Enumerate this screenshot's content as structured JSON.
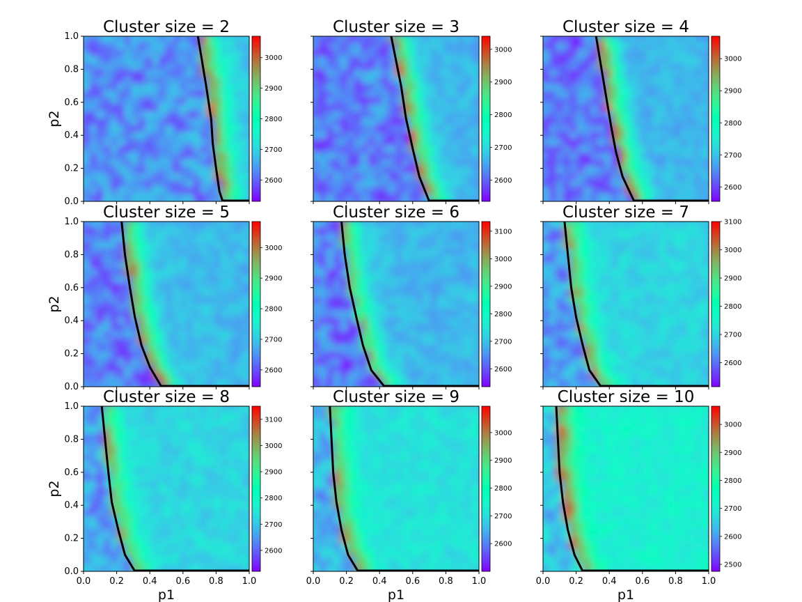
{
  "chart_data": {
    "type": "heatmap",
    "colormap": "rainbow",
    "grid": false,
    "xlabel": "p1",
    "ylabel": "p2",
    "xlim": [
      0.0,
      1.0
    ],
    "ylim": [
      0.0,
      1.0
    ],
    "x_ticks": [
      "0.0",
      "0.2",
      "0.4",
      "0.6",
      "0.8",
      "1.0"
    ],
    "y_ticks": [
      "0.0",
      "0.2",
      "0.4",
      "0.6",
      "0.8",
      "1.0"
    ],
    "boundary_color": "#000000",
    "panels": [
      {
        "title": "Cluster size = 2",
        "colorbar": {
          "min": 2530,
          "max": 3070,
          "ticks": [
            "2600",
            "2700",
            "2800",
            "2900",
            "3000"
          ]
        },
        "boundary": [
          [
            0.69,
            1.0
          ],
          [
            0.71,
            0.88
          ],
          [
            0.74,
            0.7
          ],
          [
            0.77,
            0.5
          ],
          [
            0.78,
            0.35
          ],
          [
            0.8,
            0.2
          ],
          [
            0.82,
            0.06
          ],
          [
            0.84,
            0.0
          ]
        ],
        "ridge_peak": 3010,
        "background_level": 2660
      },
      {
        "title": "Cluster size = 3",
        "colorbar": {
          "min": 2535,
          "max": 3040,
          "ticks": [
            "2600",
            "2700",
            "2800",
            "2900",
            "3000"
          ]
        },
        "boundary": [
          [
            0.47,
            1.0
          ],
          [
            0.5,
            0.85
          ],
          [
            0.53,
            0.7
          ],
          [
            0.56,
            0.5
          ],
          [
            0.6,
            0.32
          ],
          [
            0.64,
            0.15
          ],
          [
            0.7,
            0.0
          ]
        ],
        "ridge_peak": 2980,
        "background_level": 2640
      },
      {
        "title": "Cluster size = 4",
        "colorbar": {
          "min": 2555,
          "max": 3070,
          "ticks": [
            "2600",
            "2700",
            "2800",
            "2900",
            "3000"
          ]
        },
        "boundary": [
          [
            0.32,
            1.0
          ],
          [
            0.35,
            0.82
          ],
          [
            0.38,
            0.64
          ],
          [
            0.41,
            0.46
          ],
          [
            0.44,
            0.3
          ],
          [
            0.48,
            0.15
          ],
          [
            0.55,
            0.0
          ]
        ],
        "ridge_peak": 3000,
        "background_level": 2660
      },
      {
        "title": "Cluster size = 5",
        "colorbar": {
          "min": 2545,
          "max": 3085,
          "ticks": [
            "2600",
            "2700",
            "2800",
            "2900",
            "3000"
          ]
        },
        "boundary": [
          [
            0.23,
            1.0
          ],
          [
            0.25,
            0.8
          ],
          [
            0.28,
            0.6
          ],
          [
            0.31,
            0.42
          ],
          [
            0.35,
            0.25
          ],
          [
            0.4,
            0.12
          ],
          [
            0.47,
            0.0
          ]
        ],
        "ridge_peak": 3020,
        "background_level": 2660
      },
      {
        "title": "Cluster size = 6",
        "colorbar": {
          "min": 2535,
          "max": 3135,
          "ticks": [
            "2600",
            "2700",
            "2800",
            "2900",
            "3000",
            "3100"
          ]
        },
        "boundary": [
          [
            0.17,
            1.0
          ],
          [
            0.19,
            0.8
          ],
          [
            0.22,
            0.6
          ],
          [
            0.26,
            0.42
          ],
          [
            0.3,
            0.25
          ],
          [
            0.35,
            0.1
          ],
          [
            0.43,
            0.0
          ]
        ],
        "ridge_peak": 2990,
        "background_level": 2660
      },
      {
        "title": "Cluster size = 7",
        "colorbar": {
          "min": 2515,
          "max": 3100,
          "ticks": [
            "2600",
            "2700",
            "2800",
            "2900",
            "3000",
            "3100"
          ]
        },
        "boundary": [
          [
            0.13,
            1.0
          ],
          [
            0.15,
            0.8
          ],
          [
            0.17,
            0.6
          ],
          [
            0.2,
            0.42
          ],
          [
            0.24,
            0.25
          ],
          [
            0.28,
            0.1
          ],
          [
            0.35,
            0.0
          ]
        ],
        "ridge_peak": 2980,
        "background_level": 2670
      },
      {
        "title": "Cluster size = 8",
        "colorbar": {
          "min": 2520,
          "max": 3150,
          "ticks": [
            "2600",
            "2700",
            "2800",
            "2900",
            "3000",
            "3100"
          ]
        },
        "boundary": [
          [
            0.11,
            1.0
          ],
          [
            0.13,
            0.8
          ],
          [
            0.15,
            0.6
          ],
          [
            0.17,
            0.42
          ],
          [
            0.21,
            0.25
          ],
          [
            0.25,
            0.1
          ],
          [
            0.31,
            0.0
          ]
        ],
        "ridge_peak": 3000,
        "background_level": 2690
      },
      {
        "title": "Cluster size = 9",
        "colorbar": {
          "min": 2500,
          "max": 3095,
          "ticks": [
            "2600",
            "2700",
            "2800",
            "2900",
            "3000"
          ]
        },
        "boundary": [
          [
            0.1,
            1.0
          ],
          [
            0.11,
            0.8
          ],
          [
            0.12,
            0.6
          ],
          [
            0.14,
            0.42
          ],
          [
            0.17,
            0.25
          ],
          [
            0.21,
            0.1
          ],
          [
            0.27,
            0.0
          ]
        ],
        "ridge_peak": 2980,
        "background_level": 2680
      },
      {
        "title": "Cluster size = 10",
        "colorbar": {
          "min": 2475,
          "max": 3065,
          "ticks": [
            "2500",
            "2600",
            "2700",
            "2800",
            "2900",
            "3000"
          ]
        },
        "boundary": [
          [
            0.08,
            1.0
          ],
          [
            0.09,
            0.8
          ],
          [
            0.1,
            0.6
          ],
          [
            0.12,
            0.42
          ],
          [
            0.15,
            0.25
          ],
          [
            0.19,
            0.1
          ],
          [
            0.24,
            0.0
          ]
        ],
        "ridge_peak": 2990,
        "background_level": 2680
      }
    ]
  }
}
